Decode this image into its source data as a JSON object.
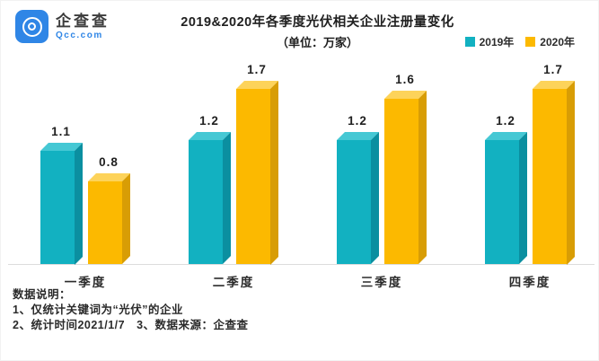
{
  "logo": {
    "brand_name": "企查查",
    "domain": "Qcc.com",
    "brand_color": "#2f86e6"
  },
  "chart_data": {
    "type": "bar",
    "title": "2019&2020年各季度光伏相关企业注册量变化",
    "subtitle": "（单位：万家）",
    "unit": "万家",
    "categories": [
      "一季度",
      "二季度",
      "三季度",
      "四季度"
    ],
    "series": [
      {
        "name": "2019年",
        "values": [
          1.1,
          1.2,
          1.2,
          1.2
        ],
        "color": "#12b1c1",
        "color_top": "#45c8d4",
        "color_side": "#0b8fa0"
      },
      {
        "name": "2020年",
        "values": [
          0.8,
          1.7,
          1.6,
          1.7
        ],
        "color": "#fcb900",
        "color_top": "#fdd35a",
        "color_side": "#d89d05"
      }
    ],
    "ylim": [
      0,
      1.85
    ],
    "grid": false,
    "value_labels": true,
    "legend_position": "top-right"
  },
  "footer": {
    "heading": "数据说明：",
    "line1": "1、仅统计关键词为“光伏”的企业",
    "line2": "2、统计时间2021/1/7　3、数据来源：企查查"
  }
}
